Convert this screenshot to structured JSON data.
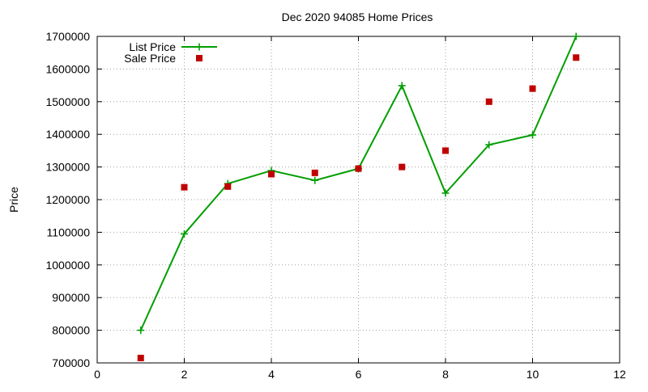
{
  "chart_data": {
    "type": "scatter",
    "title": "Dec 2020 94085 Home Prices",
    "xlabel": "",
    "ylabel": "Price",
    "xlim": [
      0,
      12
    ],
    "ylim": [
      700000,
      1700000
    ],
    "x_ticks": [
      0,
      2,
      4,
      6,
      8,
      10,
      12
    ],
    "y_ticks": [
      700000,
      800000,
      900000,
      1000000,
      1100000,
      1200000,
      1300000,
      1400000,
      1500000,
      1600000,
      1700000
    ],
    "grid": true,
    "legend_position": "top-left",
    "series": [
      {
        "name": "List Price",
        "style": "linespoints",
        "marker": "plus",
        "color": "#009e00",
        "x": [
          1,
          2,
          3,
          4,
          5,
          6,
          7,
          8,
          9,
          10,
          11
        ],
        "y": [
          800000,
          1095000,
          1249000,
          1289000,
          1259000,
          1295000,
          1549000,
          1220000,
          1368000,
          1398000,
          1700000
        ]
      },
      {
        "name": "Sale Price",
        "style": "points",
        "marker": "square",
        "color": "#c00000",
        "x": [
          1,
          2,
          3,
          4,
          5,
          6,
          7,
          8,
          9,
          10,
          11
        ],
        "y": [
          715000,
          1238000,
          1240000,
          1278000,
          1282000,
          1295000,
          1300000,
          1350000,
          1500000,
          1540000,
          1635000
        ]
      }
    ]
  }
}
